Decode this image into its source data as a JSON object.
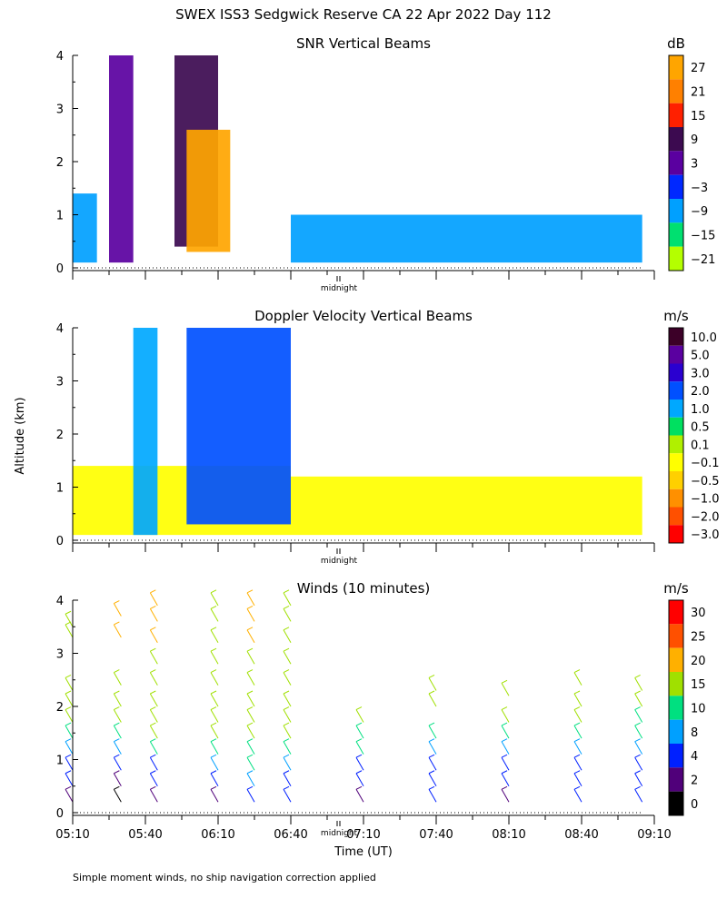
{
  "title": "SWEX ISS3 Sedgwick Reserve CA  22 Apr 2022 Day 112",
  "ylabel": "Altitude (km)",
  "xlabel": "Time (UT)",
  "midnight_label": "midnight",
  "footnote": "Simple moment winds, no ship navigation correction applied",
  "x_ticks": [
    "05:10",
    "05:40",
    "06:10",
    "06:40",
    "07:10",
    "07:40",
    "08:10",
    "08:40",
    "09:10"
  ],
  "y_ticks": [
    "0",
    "1",
    "2",
    "3",
    "4"
  ],
  "panels": {
    "snr": {
      "title": "SNR Vertical Beams",
      "unit": "dB",
      "colorbar_labels": [
        "27",
        "21",
        "15",
        "9",
        "3",
        "−3",
        "−9",
        "−15",
        "−21"
      ]
    },
    "doppler": {
      "title": "Doppler Velocity Vertical Beams",
      "unit": "m/s",
      "colorbar_labels": [
        "10.0",
        "5.0",
        "3.0",
        "2.0",
        "1.0",
        "0.5",
        "0.1",
        "−0.1",
        "−0.5",
        "−1.0",
        "−2.0",
        "−3.0"
      ]
    },
    "winds": {
      "title": "Winds (10 minutes)",
      "unit": "m/s",
      "colorbar_labels": [
        "30",
        "25",
        "20",
        "15",
        "10",
        "8",
        "4",
        "2",
        "0"
      ]
    }
  },
  "colors": {
    "snr": [
      "#ffa500",
      "#ff8000",
      "#ff2000",
      "#3c0a50",
      "#5a00a0",
      "#0028ff",
      "#00a0ff",
      "#00e070",
      "#b4ff00"
    ],
    "doppler": [
      "#3c0028",
      "#5a00a0",
      "#2a00d0",
      "#0050ff",
      "#00a8ff",
      "#00e060",
      "#b0f000",
      "#ffff00",
      "#ffd000",
      "#ff9000",
      "#ff5000",
      "#ff0000"
    ],
    "winds": [
      "#ff0000",
      "#ff5000",
      "#ffb000",
      "#a0e000",
      "#00e080",
      "#00a0ff",
      "#0020ff",
      "#50007a",
      "#000000"
    ]
  },
  "chart_data": [
    {
      "type": "heatmap",
      "title": "SNR Vertical Beams",
      "xlabel": "",
      "ylabel": "Altitude (km)",
      "xlim": [
        "05:10",
        "09:10"
      ],
      "ylim": [
        0,
        4
      ],
      "colorbar": {
        "unit": "dB",
        "levels": [
          -21,
          -15,
          -9,
          -3,
          3,
          9,
          15,
          21,
          27
        ]
      },
      "regions": [
        {
          "t0": "05:10",
          "t1": "05:20",
          "z0": 0.1,
          "z1": 1.4,
          "level": -9
        },
        {
          "t0": "05:25",
          "t1": "05:35",
          "z0": 0.1,
          "z1": 4.0,
          "level": 3
        },
        {
          "t0": "05:52",
          "t1": "06:10",
          "z0": 0.4,
          "z1": 4.0,
          "level": 9
        },
        {
          "t0": "05:57",
          "t1": "06:15",
          "z0": 0.3,
          "z1": 2.6,
          "level": 27
        },
        {
          "t0": "06:40",
          "t1": "09:05",
          "z0": 0.1,
          "z1": 1.0,
          "level": -9
        }
      ]
    },
    {
      "type": "heatmap",
      "title": "Doppler Velocity Vertical Beams",
      "xlabel": "",
      "ylabel": "Altitude (km)",
      "xlim": [
        "05:10",
        "09:10"
      ],
      "ylim": [
        0,
        4
      ],
      "colorbar": {
        "unit": "m/s",
        "levels": [
          -3.0,
          -2.0,
          -1.0,
          -0.5,
          -0.1,
          0.1,
          0.5,
          1.0,
          2.0,
          3.0,
          5.0,
          10.0
        ]
      },
      "regions": [
        {
          "t0": "05:10",
          "t1": "06:40",
          "z0": 0.1,
          "z1": 1.4,
          "level": -0.1
        },
        {
          "t0": "05:35",
          "t1": "05:45",
          "z0": 0.1,
          "z1": 4.0,
          "level": 1.0
        },
        {
          "t0": "05:57",
          "t1": "06:40",
          "z0": 0.3,
          "z1": 4.0,
          "level": 2.0
        },
        {
          "t0": "06:40",
          "t1": "09:05",
          "z0": 0.1,
          "z1": 1.2,
          "level": -0.1
        }
      ]
    },
    {
      "type": "scatter",
      "title": "Winds (10 minutes)",
      "xlabel": "Time (UT)",
      "ylabel": "Altitude (km)",
      "xlim": [
        "05:10",
        "09:10"
      ],
      "ylim": [
        0,
        4
      ],
      "colorbar": {
        "unit": "m/s",
        "levels": [
          0,
          2,
          4,
          8,
          10,
          15,
          20,
          25,
          30
        ]
      },
      "series": [
        {
          "time": "05:10",
          "heights_km": [
            0.2,
            0.5,
            0.8,
            1.1,
            1.4,
            1.7,
            2.0,
            2.3,
            3.3,
            3.5
          ],
          "speeds_ms": [
            2,
            4,
            4,
            8,
            10,
            15,
            15,
            15,
            15,
            15
          ]
        },
        {
          "time": "05:30",
          "heights_km": [
            0.2,
            0.5,
            0.8,
            1.1,
            1.4,
            1.7,
            2.0,
            2.4,
            3.3,
            3.7
          ],
          "speeds_ms": [
            0,
            2,
            4,
            8,
            10,
            15,
            15,
            15,
            20,
            20
          ]
        },
        {
          "time": "05:45",
          "heights_km": [
            0.2,
            0.5,
            0.8,
            1.1,
            1.4,
            1.7,
            2.0,
            2.4,
            2.8,
            3.2,
            3.6,
            3.9
          ],
          "speeds_ms": [
            2,
            4,
            4,
            10,
            15,
            15,
            15,
            15,
            15,
            20,
            20,
            20
          ]
        },
        {
          "time": "06:10",
          "heights_km": [
            0.2,
            0.5,
            0.8,
            1.1,
            1.4,
            1.7,
            2.0,
            2.4,
            2.8,
            3.2,
            3.6,
            3.9
          ],
          "speeds_ms": [
            2,
            4,
            8,
            10,
            15,
            15,
            15,
            15,
            15,
            15,
            15,
            15
          ]
        },
        {
          "time": "06:25",
          "heights_km": [
            0.2,
            0.5,
            0.8,
            1.1,
            1.4,
            1.7,
            2.0,
            2.4,
            2.8,
            3.2,
            3.6,
            3.9
          ],
          "speeds_ms": [
            4,
            8,
            10,
            10,
            15,
            15,
            15,
            15,
            15,
            20,
            20,
            20
          ]
        },
        {
          "time": "06:40",
          "heights_km": [
            0.2,
            0.5,
            0.8,
            1.1,
            1.4,
            1.7,
            2.0,
            2.4,
            2.8,
            3.2,
            3.6,
            3.9
          ],
          "speeds_ms": [
            4,
            4,
            8,
            10,
            15,
            15,
            15,
            15,
            15,
            15,
            15,
            15
          ]
        },
        {
          "time": "07:10",
          "heights_km": [
            0.2,
            0.5,
            0.8,
            1.1,
            1.4,
            1.7
          ],
          "speeds_ms": [
            2,
            4,
            4,
            10,
            10,
            15
          ]
        },
        {
          "time": "07:40",
          "heights_km": [
            0.2,
            0.5,
            0.8,
            1.1,
            1.4,
            2.0,
            2.3
          ],
          "speeds_ms": [
            4,
            4,
            4,
            8,
            10,
            15,
            15
          ]
        },
        {
          "time": "08:10",
          "heights_km": [
            0.2,
            0.5,
            0.8,
            1.1,
            1.4,
            1.7,
            2.2
          ],
          "speeds_ms": [
            2,
            4,
            4,
            8,
            10,
            15,
            15
          ]
        },
        {
          "time": "08:40",
          "heights_km": [
            0.2,
            0.5,
            0.8,
            1.1,
            1.4,
            1.7,
            2.0,
            2.4
          ],
          "speeds_ms": [
            4,
            4,
            4,
            8,
            10,
            15,
            15,
            15
          ]
        },
        {
          "time": "09:05",
          "heights_km": [
            0.2,
            0.5,
            0.8,
            1.1,
            1.4,
            1.7,
            2.0,
            2.3
          ],
          "speeds_ms": [
            4,
            4,
            4,
            8,
            10,
            10,
            15,
            15
          ]
        }
      ]
    }
  ]
}
